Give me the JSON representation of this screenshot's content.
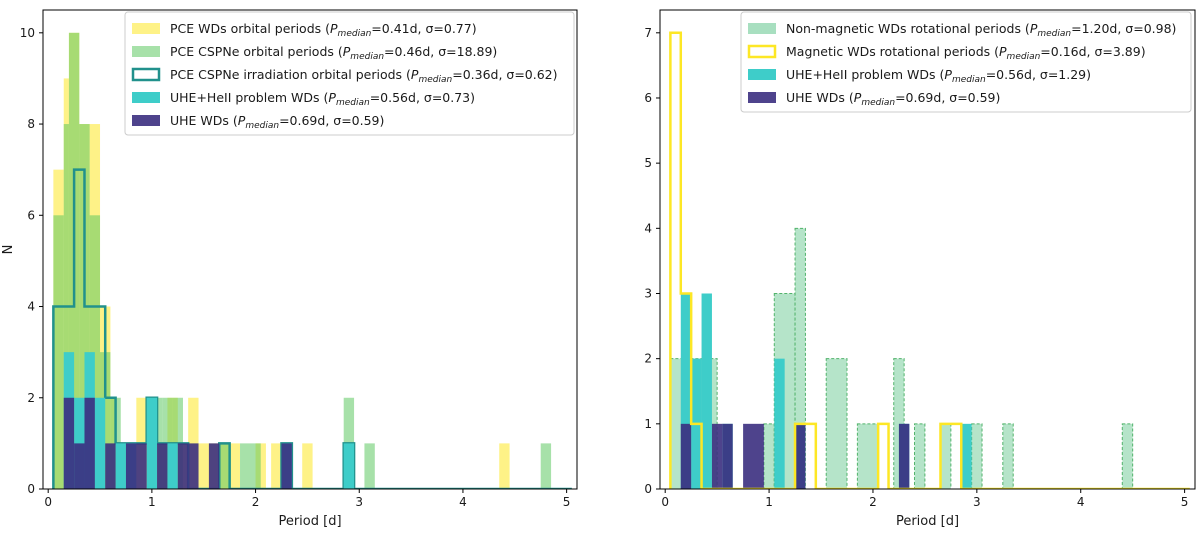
{
  "chart_data": [
    {
      "type": "histogram",
      "xlabel": "Period [d]",
      "ylabel": "N",
      "xlim": [
        -0.05,
        5.1
      ],
      "ylim": [
        0,
        10.5
      ],
      "xticks": [
        0,
        1,
        2,
        3,
        4,
        5
      ],
      "yticks": [
        0,
        2,
        4,
        6,
        8,
        10
      ],
      "legend_position": "top-right",
      "legend_entries": [
        {
          "label": "PCE WDs orbital periods (P_median = 0.41d, σ = 0.77)",
          "name": "PCE WDs orbital periods (",
          "val": "=0.41d, σ=0.77)",
          "swatch": "fill",
          "color": "#fde725",
          "alpha": 0.55
        },
        {
          "label": "PCE CSPNe orbital periods (P_median = 0.46d, σ = 18.89)",
          "name": "PCE CSPNe orbital periods (",
          "val": "=0.46d, σ=18.89)",
          "swatch": "fill",
          "color": "#5ec962",
          "alpha": 0.55
        },
        {
          "label": "PCE CSPNe irradiation orbital periods (P_median = 0.36d, σ = 0.62)",
          "name": "PCE CSPNe irradiation orbital periods (",
          "val": "=0.36d, σ=0.62)",
          "swatch": "step",
          "color": "#21918c",
          "alpha": 1
        },
        {
          "label": "UHE+HeII problem WDs (P_median = 0.56d, σ = 0.73)",
          "name": "UHE+HeII problem WDs (",
          "val": "=0.56d, σ=0.73)",
          "swatch": "fill",
          "color": "#3ecdc9",
          "alpha": 1
        },
        {
          "label": "UHE WDs (P_median = 0.69d, σ = 0.59)",
          "name": "UHE WDs (",
          "val": "=0.69d, σ=0.59)",
          "swatch": "fill",
          "color": "#3b2f7f",
          "alpha": 0.9
        }
      ],
      "series": [
        {
          "name": "PCE WDs orbital periods",
          "style": "fill",
          "color": "#fde725",
          "alpha": 0.55,
          "bars": [
            [
              0.05,
              0.15,
              7
            ],
            [
              0.15,
              0.2,
              9
            ],
            [
              0.2,
              0.3,
              10
            ],
            [
              0.3,
              0.4,
              8
            ],
            [
              0.4,
              0.5,
              8
            ],
            [
              0.5,
              0.6,
              4
            ],
            [
              0.6,
              0.65,
              2
            ],
            [
              0.65,
              0.85,
              1
            ],
            [
              0.85,
              0.95,
              2
            ],
            [
              0.95,
              1.05,
              1
            ],
            [
              1.05,
              1.15,
              1
            ],
            [
              1.15,
              1.25,
              2
            ],
            [
              1.25,
              1.35,
              1
            ],
            [
              1.35,
              1.45,
              2
            ],
            [
              1.45,
              1.6,
              1
            ],
            [
              1.6,
              1.75,
              1
            ],
            [
              1.75,
              1.85,
              1
            ],
            [
              2.0,
              2.1,
              1
            ],
            [
              2.15,
              2.25,
              1
            ],
            [
              2.45,
              2.55,
              1
            ],
            [
              4.35,
              4.45,
              1
            ]
          ]
        },
        {
          "name": "PCE CSPNe orbital periods",
          "style": "fill",
          "color": "#5ec962",
          "alpha": 0.55,
          "bars": [
            [
              0.05,
              0.15,
              6
            ],
            [
              0.15,
              0.2,
              8
            ],
            [
              0.2,
              0.3,
              10
            ],
            [
              0.3,
              0.4,
              8
            ],
            [
              0.4,
              0.5,
              6
            ],
            [
              0.5,
              0.6,
              3
            ],
            [
              0.6,
              0.7,
              2
            ],
            [
              0.7,
              0.8,
              1
            ],
            [
              1.0,
              1.1,
              2
            ],
            [
              1.1,
              1.2,
              2
            ],
            [
              1.2,
              1.3,
              2
            ],
            [
              1.65,
              1.75,
              1
            ],
            [
              1.85,
              2.05,
              1
            ],
            [
              2.25,
              2.35,
              1
            ],
            [
              2.85,
              2.95,
              2
            ],
            [
              3.05,
              3.15,
              1
            ],
            [
              4.75,
              4.85,
              1
            ]
          ]
        },
        {
          "name": "PCE CSPNe irradiation orbital periods",
          "style": "step",
          "color": "#21918c",
          "edges": [
            0.05,
            0.25,
            0.35,
            0.55,
            0.65,
            0.95,
            1.05,
            1.15,
            1.25,
            1.35,
            1.65,
            1.75,
            2.25,
            2.35,
            2.85,
            2.95,
            5.05
          ],
          "counts": [
            4,
            7,
            4,
            2,
            1,
            2,
            1,
            1,
            1,
            0,
            1,
            0,
            1,
            0,
            1,
            0
          ]
        },
        {
          "name": "UHE+HeII problem WDs",
          "style": "fill",
          "color": "#3ecdc9",
          "alpha": 1,
          "bars": [
            [
              0.15,
              0.25,
              3
            ],
            [
              0.25,
              0.35,
              2
            ],
            [
              0.35,
              0.45,
              3
            ],
            [
              0.45,
              0.55,
              2
            ],
            [
              0.65,
              0.75,
              1
            ],
            [
              0.75,
              0.85,
              1
            ],
            [
              0.95,
              1.05,
              2
            ],
            [
              1.15,
              1.25,
              1
            ],
            [
              2.25,
              2.35,
              1
            ],
            [
              2.85,
              2.95,
              1
            ]
          ]
        },
        {
          "name": "UHE WDs",
          "style": "fill",
          "color": "#3b2f7f",
          "alpha": 0.9,
          "bars": [
            [
              0.15,
              0.25,
              2
            ],
            [
              0.25,
              0.35,
              1
            ],
            [
              0.35,
              0.45,
              2
            ],
            [
              0.55,
              0.65,
              1
            ],
            [
              0.75,
              0.95,
              1
            ],
            [
              1.05,
              1.15,
              1
            ],
            [
              1.25,
              1.35,
              1
            ],
            [
              1.35,
              1.45,
              1
            ],
            [
              1.55,
              1.65,
              1
            ],
            [
              2.25,
              2.35,
              1
            ]
          ]
        }
      ]
    },
    {
      "type": "histogram",
      "xlabel": "Period [d]",
      "ylabel": "",
      "xlim": [
        -0.05,
        5.1
      ],
      "ylim": [
        0,
        7.35
      ],
      "xticks": [
        0,
        1,
        2,
        3,
        4,
        5
      ],
      "yticks": [
        0,
        1,
        2,
        3,
        4,
        5,
        6,
        7
      ],
      "legend_position": "top-right",
      "legend_entries": [
        {
          "label": "Non-magnetic WDs rotational periods (P_median = 1.20d, σ = 0.98)",
          "name": "Non-magnetic WDs rotational periods (",
          "val": "=1.20d, σ=0.98)",
          "swatch": "fill",
          "color": "#a8dfc0",
          "alpha": 1
        },
        {
          "label": "Magnetic WDs rotational periods (P_median = 0.16d, σ = 3.89)",
          "name": "Magnetic WDs rotational periods (",
          "val": "=0.16d, σ=3.89)",
          "swatch": "step",
          "color": "#fde725",
          "alpha": 1
        },
        {
          "label": "UHE+HeII problem WDs (P_median = 0.56d, σ = 1.29)",
          "name": "UHE+HeII problem WDs (",
          "val": "=0.56d, σ=1.29)",
          "swatch": "fill",
          "color": "#3ecdc9",
          "alpha": 1
        },
        {
          "label": "UHE WDs (P_median = 0.69d, σ = 0.59)",
          "name": "UHE WDs (",
          "val": "=0.69d, σ=0.59)",
          "swatch": "fill",
          "color": "#3b2f7f",
          "alpha": 0.9
        }
      ],
      "series": [
        {
          "name": "Non-magnetic WDs rotational periods",
          "style": "dashedfill",
          "color": "#a8dfc0",
          "stroke": "#52b36b",
          "bars": [
            [
              0.05,
              0.5,
              2
            ],
            [
              0.5,
              0.55,
              0
            ],
            [
              0.95,
              1.05,
              1
            ],
            [
              1.05,
              1.25,
              3
            ],
            [
              1.25,
              1.35,
              4
            ],
            [
              1.55,
              1.75,
              2
            ],
            [
              1.85,
              2.05,
              1
            ],
            [
              2.2,
              2.3,
              2
            ],
            [
              2.4,
              2.5,
              1
            ],
            [
              2.65,
              2.75,
              1
            ],
            [
              2.95,
              3.05,
              1
            ],
            [
              3.25,
              3.35,
              1
            ],
            [
              4.4,
              4.5,
              1
            ]
          ]
        },
        {
          "name": "UHE+HeII problem WDs",
          "style": "fill",
          "color": "#3ecdc9",
          "alpha": 1,
          "bars": [
            [
              0.15,
              0.25,
              3
            ],
            [
              0.25,
              0.35,
              2
            ],
            [
              0.35,
              0.45,
              3
            ],
            [
              0.55,
              0.65,
              1
            ],
            [
              1.05,
              1.15,
              2
            ],
            [
              1.25,
              1.35,
              1
            ],
            [
              2.25,
              2.35,
              1
            ],
            [
              2.85,
              2.95,
              1
            ]
          ]
        },
        {
          "name": "UHE WDs",
          "style": "fill",
          "color": "#3b2f7f",
          "alpha": 0.9,
          "bars": [
            [
              0.15,
              0.25,
              1
            ],
            [
              0.45,
              0.55,
              1
            ],
            [
              0.55,
              0.65,
              1
            ],
            [
              0.75,
              0.95,
              1
            ],
            [
              1.25,
              1.35,
              1
            ],
            [
              2.25,
              2.35,
              1
            ]
          ]
        },
        {
          "name": "Magnetic WDs rotational periods",
          "style": "step",
          "color": "#fde725",
          "edges": [
            0.05,
            0.15,
            0.25,
            0.35,
            0.65,
            1.25,
            1.45,
            2.05,
            2.15,
            2.65,
            2.85,
            5.05
          ],
          "counts": [
            7,
            3,
            1,
            0,
            0,
            1,
            0,
            1,
            0,
            1,
            0
          ]
        }
      ]
    }
  ]
}
